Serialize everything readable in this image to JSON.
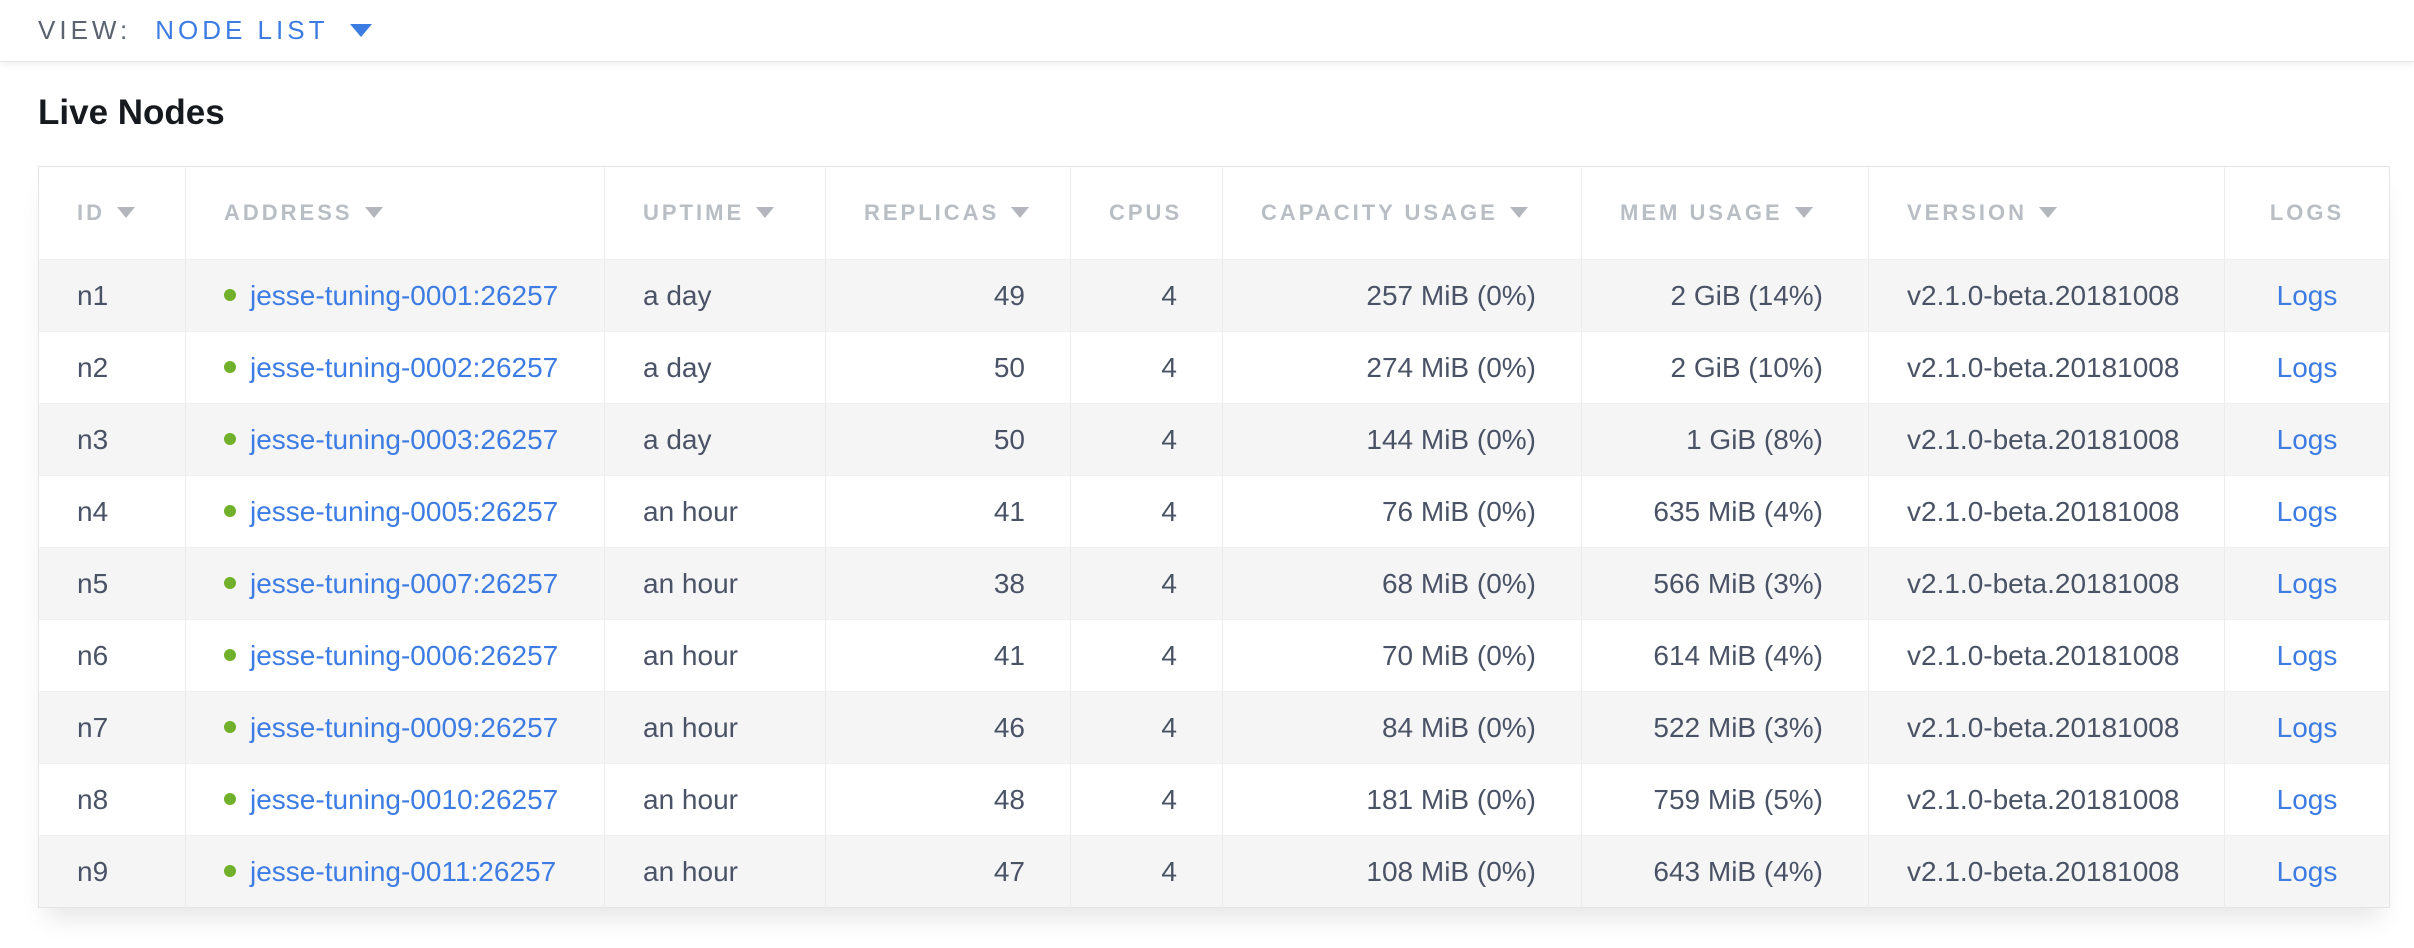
{
  "view_bar": {
    "label": "VIEW:",
    "selected": "NODE LIST"
  },
  "page": {
    "title": "Live Nodes"
  },
  "colors": {
    "accent_blue": "#3d7ce2",
    "live_status_green": "#70b02a",
    "header_gray": "#b9bdc4"
  },
  "table": {
    "columns": [
      {
        "key": "id",
        "label": "ID",
        "sortable": true
      },
      {
        "key": "address",
        "label": "ADDRESS",
        "sortable": true
      },
      {
        "key": "uptime",
        "label": "UPTIME",
        "sortable": true
      },
      {
        "key": "replicas",
        "label": "REPLICAS",
        "sortable": true
      },
      {
        "key": "cpus",
        "label": "CPUS",
        "sortable": false
      },
      {
        "key": "capacity",
        "label": "CAPACITY USAGE",
        "sortable": true
      },
      {
        "key": "mem",
        "label": "MEM USAGE",
        "sortable": true
      },
      {
        "key": "version",
        "label": "VERSION",
        "sortable": true
      },
      {
        "key": "logs",
        "label": "LOGS",
        "sortable": false
      }
    ],
    "rows": [
      {
        "id": "n1",
        "status": "live",
        "address": "jesse-tuning-0001:26257",
        "uptime": "a day",
        "replicas": "49",
        "cpus": "4",
        "capacity": "257 MiB (0%)",
        "mem": "2 GiB (14%)",
        "version": "v2.1.0-beta.20181008",
        "logs": "Logs"
      },
      {
        "id": "n2",
        "status": "live",
        "address": "jesse-tuning-0002:26257",
        "uptime": "a day",
        "replicas": "50",
        "cpus": "4",
        "capacity": "274 MiB (0%)",
        "mem": "2 GiB (10%)",
        "version": "v2.1.0-beta.20181008",
        "logs": "Logs"
      },
      {
        "id": "n3",
        "status": "live",
        "address": "jesse-tuning-0003:26257",
        "uptime": "a day",
        "replicas": "50",
        "cpus": "4",
        "capacity": "144 MiB (0%)",
        "mem": "1 GiB (8%)",
        "version": "v2.1.0-beta.20181008",
        "logs": "Logs"
      },
      {
        "id": "n4",
        "status": "live",
        "address": "jesse-tuning-0005:26257",
        "uptime": "an hour",
        "replicas": "41",
        "cpus": "4",
        "capacity": "76 MiB (0%)",
        "mem": "635 MiB (4%)",
        "version": "v2.1.0-beta.20181008",
        "logs": "Logs"
      },
      {
        "id": "n5",
        "status": "live",
        "address": "jesse-tuning-0007:26257",
        "uptime": "an hour",
        "replicas": "38",
        "cpus": "4",
        "capacity": "68 MiB (0%)",
        "mem": "566 MiB (3%)",
        "version": "v2.1.0-beta.20181008",
        "logs": "Logs"
      },
      {
        "id": "n6",
        "status": "live",
        "address": "jesse-tuning-0006:26257",
        "uptime": "an hour",
        "replicas": "41",
        "cpus": "4",
        "capacity": "70 MiB (0%)",
        "mem": "614 MiB (4%)",
        "version": "v2.1.0-beta.20181008",
        "logs": "Logs"
      },
      {
        "id": "n7",
        "status": "live",
        "address": "jesse-tuning-0009:26257",
        "uptime": "an hour",
        "replicas": "46",
        "cpus": "4",
        "capacity": "84 MiB (0%)",
        "mem": "522 MiB (3%)",
        "version": "v2.1.0-beta.20181008",
        "logs": "Logs"
      },
      {
        "id": "n8",
        "status": "live",
        "address": "jesse-tuning-0010:26257",
        "uptime": "an hour",
        "replicas": "48",
        "cpus": "4",
        "capacity": "181 MiB (0%)",
        "mem": "759 MiB (5%)",
        "version": "v2.1.0-beta.20181008",
        "logs": "Logs"
      },
      {
        "id": "n9",
        "status": "live",
        "address": "jesse-tuning-0011:26257",
        "uptime": "an hour",
        "replicas": "47",
        "cpus": "4",
        "capacity": "108 MiB (0%)",
        "mem": "643 MiB (4%)",
        "version": "v2.1.0-beta.20181008",
        "logs": "Logs"
      }
    ]
  }
}
